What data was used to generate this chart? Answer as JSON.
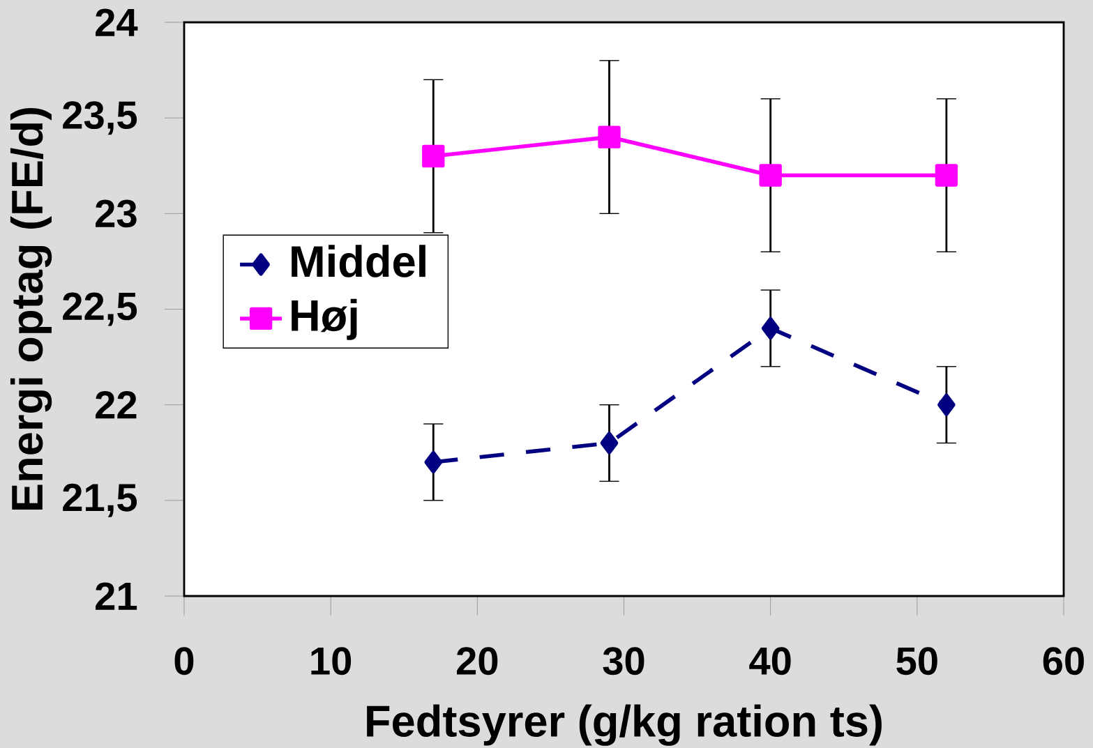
{
  "chart_data": {
    "type": "line",
    "xlabel": "Fedtsyrer (g/kg ration ts)",
    "ylabel": "Energi optag (FE/d)",
    "x": [
      17,
      29,
      40,
      52
    ],
    "series": [
      {
        "name": "Middel",
        "color": "#000080",
        "values": [
          21.7,
          21.8,
          22.4,
          22.0
        ],
        "errors": [
          0.2,
          0.2,
          0.2,
          0.2
        ],
        "marker": "diamond",
        "line_style": "dashed"
      },
      {
        "name": "Høj",
        "color": "#ff00ff",
        "values": [
          23.3,
          23.4,
          23.2,
          23.2
        ],
        "errors": [
          0.4,
          0.4,
          0.4,
          0.4
        ],
        "marker": "square",
        "line_style": "solid"
      }
    ],
    "xlim": [
      0,
      60
    ],
    "xticks": [
      0,
      10,
      20,
      30,
      40,
      50,
      60
    ],
    "ylim": [
      21,
      24
    ],
    "yticks": [
      21,
      {
        "value": 21.5,
        "label": "21,5"
      },
      22,
      {
        "value": 22.5,
        "label": "22,5"
      },
      23,
      {
        "value": 23.5,
        "label": "23,5"
      },
      24
    ],
    "grid": false,
    "legend": "left"
  }
}
